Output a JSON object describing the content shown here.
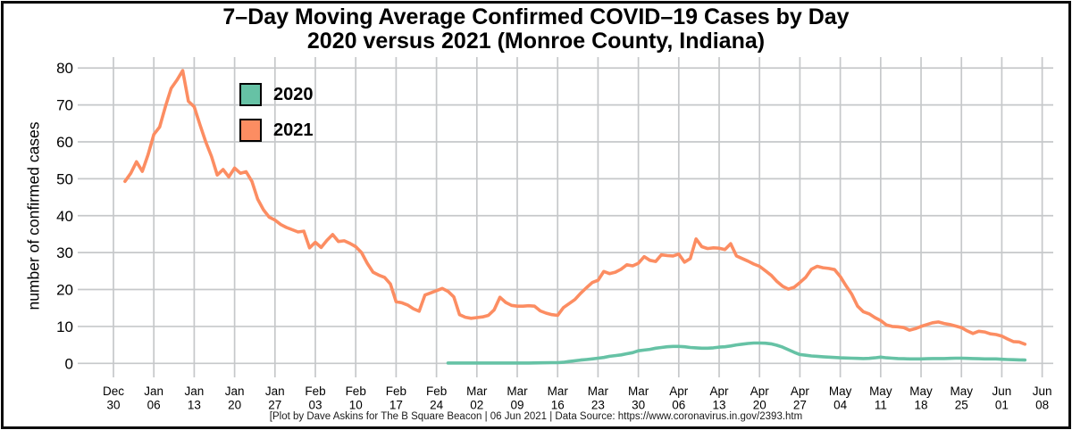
{
  "chart": {
    "title_line1": "7–Day Moving Average Confirmed COVID–19 Cases by Day",
    "title_line2": "2020 versus 2021 (Monroe County, Indiana)",
    "y_axis_label": "number of confirmed cases",
    "footer": "[Plot by Dave Askins for The B Square Beacon | 06 Jun 2021 | Data Source: https://www.coronavirus.in.gov/2393.htm"
  },
  "legend": {
    "items": [
      {
        "label": "2020",
        "color": "#66C2A5"
      },
      {
        "label": "2021",
        "color": "#FC8D62"
      }
    ]
  },
  "colors": {
    "background": "#FFFFFF",
    "frame": "#0B0B0B",
    "grid": "#C6C8CA",
    "series_2020": "#66C2A5",
    "series_2021": "#FC8D62"
  },
  "chart_data": {
    "type": "line",
    "title": "7–Day Moving Average Confirmed COVID–19 Cases by Day",
    "subtitle": "2020 versus 2021 (Monroe County, Indiana)",
    "xlabel": "",
    "ylabel": "number of confirmed cases",
    "ylim": [
      0,
      80
    ],
    "yticks": [
      0,
      10,
      20,
      30,
      40,
      50,
      60,
      70,
      80
    ],
    "grid": true,
    "legend_position": "top-left-inset",
    "x_unit": "days after first x tick (ticks weekly)",
    "x_tick_labels": [
      [
        "Dec",
        "30"
      ],
      [
        "Jan",
        "06"
      ],
      [
        "Jan",
        "13"
      ],
      [
        "Jan",
        "20"
      ],
      [
        "Jan",
        "27"
      ],
      [
        "Feb",
        "03"
      ],
      [
        "Feb",
        "10"
      ],
      [
        "Feb",
        "17"
      ],
      [
        "Feb",
        "24"
      ],
      [
        "Mar",
        "02"
      ],
      [
        "Mar",
        "09"
      ],
      [
        "Mar",
        "16"
      ],
      [
        "Mar",
        "23"
      ],
      [
        "Mar",
        "30"
      ],
      [
        "Apr",
        "06"
      ],
      [
        "Apr",
        "13"
      ],
      [
        "Apr",
        "20"
      ],
      [
        "Apr",
        "27"
      ],
      [
        "May",
        "04"
      ],
      [
        "May",
        "11"
      ],
      [
        "May",
        "18"
      ],
      [
        "May",
        "25"
      ],
      [
        "Jun",
        "01"
      ],
      [
        "Jun",
        "08"
      ]
    ],
    "series": [
      {
        "name": "2020",
        "color": "#66C2A5",
        "points": [
          [
            58,
            0.1
          ],
          [
            60,
            0.1
          ],
          [
            62,
            0.1
          ],
          [
            64,
            0.1
          ],
          [
            66,
            0.1
          ],
          [
            68,
            0.1
          ],
          [
            70,
            0.1
          ],
          [
            72,
            0.1
          ],
          [
            74,
            0.15
          ],
          [
            76,
            0.2
          ],
          [
            77,
            0.2
          ],
          [
            78,
            0.3
          ],
          [
            79,
            0.5
          ],
          [
            80,
            0.7
          ],
          [
            81,
            0.9
          ],
          [
            82,
            1.05
          ],
          [
            83,
            1.2
          ],
          [
            84,
            1.4
          ],
          [
            85,
            1.6
          ],
          [
            86,
            1.9
          ],
          [
            87,
            2.1
          ],
          [
            88,
            2.3
          ],
          [
            89,
            2.6
          ],
          [
            90,
            2.9
          ],
          [
            91,
            3.4
          ],
          [
            92,
            3.6
          ],
          [
            93,
            3.8
          ],
          [
            94,
            4.1
          ],
          [
            95,
            4.3
          ],
          [
            96,
            4.5
          ],
          [
            97,
            4.6
          ],
          [
            98,
            4.6
          ],
          [
            99,
            4.5
          ],
          [
            100,
            4.3
          ],
          [
            101,
            4.2
          ],
          [
            102,
            4.1
          ],
          [
            103,
            4.1
          ],
          [
            104,
            4.2
          ],
          [
            105,
            4.4
          ],
          [
            106,
            4.5
          ],
          [
            107,
            4.7
          ],
          [
            108,
            5.0
          ],
          [
            109,
            5.2
          ],
          [
            110,
            5.4
          ],
          [
            111,
            5.5
          ],
          [
            112,
            5.5
          ],
          [
            113,
            5.45
          ],
          [
            114,
            5.3
          ],
          [
            115,
            4.9
          ],
          [
            116,
            4.4
          ],
          [
            117,
            3.7
          ],
          [
            118,
            3.0
          ],
          [
            119,
            2.4
          ],
          [
            120,
            2.2
          ],
          [
            121,
            2.0
          ],
          [
            122,
            1.9
          ],
          [
            123,
            1.8
          ],
          [
            124,
            1.7
          ],
          [
            125,
            1.6
          ],
          [
            126,
            1.5
          ],
          [
            127,
            1.45
          ],
          [
            128,
            1.4
          ],
          [
            129,
            1.35
          ],
          [
            130,
            1.3
          ],
          [
            131,
            1.35
          ],
          [
            132,
            1.5
          ],
          [
            133,
            1.7
          ],
          [
            134,
            1.5
          ],
          [
            135,
            1.4
          ],
          [
            136,
            1.3
          ],
          [
            137,
            1.25
          ],
          [
            138,
            1.2
          ],
          [
            139,
            1.2
          ],
          [
            140,
            1.2
          ],
          [
            141,
            1.25
          ],
          [
            142,
            1.3
          ],
          [
            143,
            1.3
          ],
          [
            144,
            1.3
          ],
          [
            145,
            1.35
          ],
          [
            146,
            1.4
          ],
          [
            147,
            1.4
          ],
          [
            148,
            1.35
          ],
          [
            149,
            1.3
          ],
          [
            150,
            1.25
          ],
          [
            151,
            1.2
          ],
          [
            152,
            1.2
          ],
          [
            153,
            1.2
          ],
          [
            154,
            1.1
          ],
          [
            155,
            1.05
          ],
          [
            156,
            1.0
          ],
          [
            157,
            0.95
          ],
          [
            158,
            0.9
          ]
        ]
      },
      {
        "name": "2021",
        "color": "#FC8D62",
        "points": [
          [
            2,
            49.3
          ],
          [
            3,
            51.5
          ],
          [
            4,
            54.6
          ],
          [
            5,
            52.0
          ],
          [
            6,
            56.5
          ],
          [
            7,
            62.0
          ],
          [
            8,
            64.0
          ],
          [
            9,
            69.5
          ],
          [
            10,
            74.5
          ],
          [
            11,
            76.7
          ],
          [
            12,
            79.3
          ],
          [
            13,
            71.0
          ],
          [
            14,
            69.5
          ],
          [
            15,
            64.6
          ],
          [
            16,
            60.0
          ],
          [
            17,
            56.0
          ],
          [
            18,
            51.0
          ],
          [
            19,
            52.5
          ],
          [
            20,
            50.5
          ],
          [
            21,
            52.9
          ],
          [
            22,
            51.5
          ],
          [
            23,
            51.9
          ],
          [
            24,
            49.3
          ],
          [
            25,
            44.5
          ],
          [
            26,
            41.6
          ],
          [
            27,
            39.6
          ],
          [
            28,
            38.8
          ],
          [
            29,
            37.6
          ],
          [
            30,
            36.8
          ],
          [
            31,
            36.2
          ],
          [
            32,
            35.6
          ],
          [
            33,
            35.8
          ],
          [
            34,
            31.3
          ],
          [
            35,
            32.8
          ],
          [
            36,
            31.4
          ],
          [
            37,
            33.3
          ],
          [
            38,
            34.9
          ],
          [
            39,
            33.0
          ],
          [
            40,
            33.2
          ],
          [
            41,
            32.5
          ],
          [
            42,
            31.6
          ],
          [
            43,
            30.0
          ],
          [
            44,
            27.1
          ],
          [
            45,
            24.7
          ],
          [
            46,
            23.9
          ],
          [
            47,
            23.3
          ],
          [
            48,
            21.5
          ],
          [
            49,
            16.7
          ],
          [
            50,
            16.4
          ],
          [
            51,
            15.8
          ],
          [
            52,
            14.8
          ],
          [
            53,
            14.1
          ],
          [
            54,
            18.5
          ],
          [
            55,
            19.1
          ],
          [
            56,
            19.7
          ],
          [
            57,
            20.3
          ],
          [
            58,
            19.5
          ],
          [
            59,
            18.0
          ],
          [
            60,
            13.2
          ],
          [
            61,
            12.5
          ],
          [
            62,
            12.2
          ],
          [
            63,
            12.4
          ],
          [
            64,
            12.6
          ],
          [
            65,
            13.0
          ],
          [
            66,
            14.5
          ],
          [
            67,
            17.9
          ],
          [
            68,
            16.5
          ],
          [
            69,
            15.7
          ],
          [
            70,
            15.5
          ],
          [
            71,
            15.5
          ],
          [
            72,
            15.6
          ],
          [
            73,
            15.5
          ],
          [
            74,
            14.2
          ],
          [
            75,
            13.6
          ],
          [
            76,
            13.2
          ],
          [
            77,
            13.0
          ],
          [
            78,
            15.1
          ],
          [
            79,
            16.2
          ],
          [
            80,
            17.3
          ],
          [
            81,
            19.0
          ],
          [
            82,
            20.5
          ],
          [
            83,
            21.9
          ],
          [
            84,
            22.5
          ],
          [
            85,
            24.9
          ],
          [
            86,
            24.3
          ],
          [
            87,
            24.7
          ],
          [
            88,
            25.5
          ],
          [
            89,
            26.7
          ],
          [
            90,
            26.4
          ],
          [
            91,
            27.1
          ],
          [
            92,
            28.9
          ],
          [
            93,
            27.9
          ],
          [
            94,
            27.6
          ],
          [
            95,
            29.4
          ],
          [
            96,
            29.2
          ],
          [
            97,
            29.1
          ],
          [
            98,
            29.6
          ],
          [
            99,
            27.4
          ],
          [
            100,
            28.4
          ],
          [
            101,
            33.7
          ],
          [
            102,
            31.6
          ],
          [
            103,
            31.1
          ],
          [
            104,
            31.3
          ],
          [
            105,
            31.2
          ],
          [
            106,
            30.8
          ],
          [
            107,
            32.4
          ],
          [
            108,
            29.1
          ],
          [
            109,
            28.4
          ],
          [
            110,
            27.7
          ],
          [
            111,
            26.9
          ],
          [
            112,
            26.3
          ],
          [
            113,
            25.1
          ],
          [
            114,
            23.9
          ],
          [
            115,
            22.2
          ],
          [
            116,
            20.9
          ],
          [
            117,
            20.1
          ],
          [
            118,
            20.6
          ],
          [
            119,
            21.9
          ],
          [
            120,
            23.3
          ],
          [
            121,
            25.5
          ],
          [
            122,
            26.3
          ],
          [
            123,
            25.9
          ],
          [
            124,
            25.7
          ],
          [
            125,
            25.4
          ],
          [
            126,
            23.5
          ],
          [
            127,
            21.0
          ],
          [
            128,
            18.7
          ],
          [
            129,
            15.5
          ],
          [
            130,
            14.0
          ],
          [
            131,
            13.4
          ],
          [
            132,
            12.4
          ],
          [
            133,
            11.6
          ],
          [
            134,
            10.4
          ],
          [
            135,
            10.0
          ],
          [
            136,
            9.9
          ],
          [
            137,
            9.7
          ],
          [
            138,
            9.0
          ],
          [
            139,
            9.4
          ],
          [
            140,
            10.0
          ],
          [
            141,
            10.5
          ],
          [
            142,
            11.0
          ],
          [
            143,
            11.2
          ],
          [
            144,
            10.8
          ],
          [
            145,
            10.5
          ],
          [
            146,
            10.1
          ],
          [
            147,
            9.7
          ],
          [
            148,
            8.8
          ],
          [
            149,
            8.1
          ],
          [
            150,
            8.7
          ],
          [
            151,
            8.5
          ],
          [
            152,
            8.0
          ],
          [
            153,
            7.8
          ],
          [
            154,
            7.4
          ],
          [
            155,
            6.6
          ],
          [
            156,
            5.9
          ],
          [
            157,
            5.8
          ],
          [
            158,
            5.2
          ]
        ]
      }
    ]
  }
}
